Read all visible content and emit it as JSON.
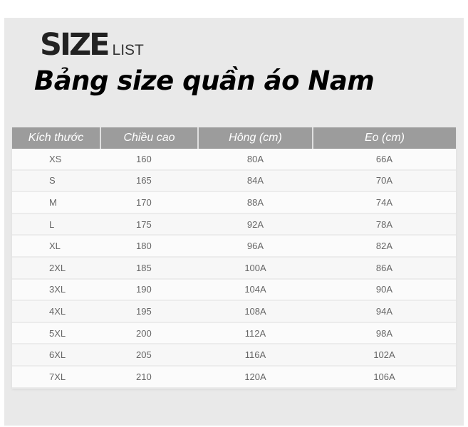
{
  "header": {
    "brand_big": "SIZE",
    "brand_small": "LIST",
    "title": "Bảng size quần áo Nam"
  },
  "table": {
    "columns": [
      "Kích thước",
      "Chiều cao",
      "Hông (cm)",
      "Eo (cm)"
    ],
    "rows": [
      [
        "XS",
        "160",
        "80A",
        "66A"
      ],
      [
        "S",
        "165",
        "84A",
        "70A"
      ],
      [
        "M",
        "170",
        "88A",
        "74A"
      ],
      [
        "L",
        "175",
        "92A",
        "78A"
      ],
      [
        "XL",
        "180",
        "96A",
        "82A"
      ],
      [
        "2XL",
        "185",
        "100A",
        "86A"
      ],
      [
        "3XL",
        "190",
        "104A",
        "90A"
      ],
      [
        "4XL",
        "195",
        "108A",
        "94A"
      ],
      [
        "5XL",
        "200",
        "112A",
        "98A"
      ],
      [
        "6XL",
        "205",
        "116A",
        "102A"
      ],
      [
        "7XL",
        "210",
        "120A",
        "106A"
      ]
    ]
  }
}
